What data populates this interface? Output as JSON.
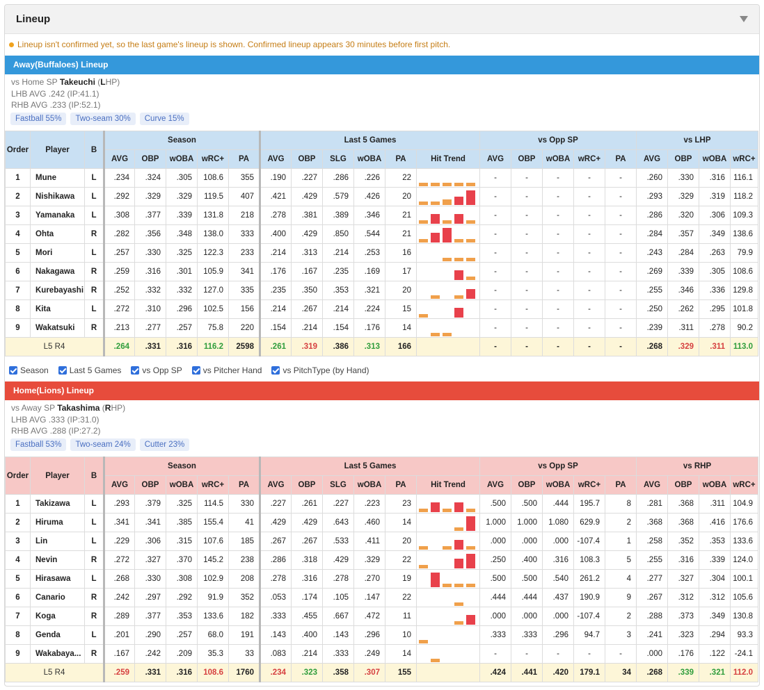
{
  "panel": {
    "title": "Lineup"
  },
  "notice": "Lineup isn't confirmed yet, so the last game's lineup is shown. Confirmed lineup appears 30 minutes before first pitch.",
  "headers": {
    "order": "Order",
    "player": "Player",
    "b": "B",
    "season": "Season",
    "last5": "Last 5 Games",
    "vs_opp_sp": "vs Opp SP",
    "cols_season": [
      "AVG",
      "OBP",
      "wOBA",
      "wRC+",
      "PA"
    ],
    "cols_last5": [
      "AVG",
      "OBP",
      "SLG",
      "wOBA",
      "PA",
      "Hit Trend"
    ],
    "cols_opp": [
      "AVG",
      "OBP",
      "wOBA",
      "wRC+",
      "PA"
    ],
    "cols_hand": [
      "AVG",
      "OBP",
      "wOBA",
      "wRC+"
    ]
  },
  "colors": {
    "bar_orange": "#f0a04b",
    "bar_red": "#e8414b"
  },
  "away": {
    "bar": "Away(Buffaloes) Lineup",
    "sp_prefix": "vs Home SP",
    "sp_name": "Takeuchi",
    "sp_hand_open": "(",
    "sp_hand_letter": "L",
    "sp_hand_rest": "HP)",
    "lhb": "LHB AVG .242 (IP:41.1)",
    "rhb": "RHB AVG .233 (IP:52.1)",
    "pitches": [
      "Fastball 55%",
      "Two-seam 30%",
      "Curve 15%"
    ],
    "hand_label": "vs LHP",
    "rows": [
      {
        "o": "1",
        "n": "Mune",
        "b": "L",
        "s": [
          ".234",
          ".324",
          ".305",
          "108.6",
          "355"
        ],
        "l": [
          ".190",
          ".227",
          ".286",
          ".226",
          "22"
        ],
        "trend": [
          1,
          1,
          1,
          1,
          1
        ],
        "v": [
          "-",
          "-",
          "-",
          "-",
          "-"
        ],
        "h": [
          ".260",
          ".330",
          ".316",
          "116.1"
        ]
      },
      {
        "o": "2",
        "n": "Nishikawa",
        "b": "L",
        "s": [
          ".292",
          ".329",
          ".329",
          "119.5",
          "407"
        ],
        "l": [
          ".421",
          ".429",
          ".579",
          ".426",
          "20"
        ],
        "trend": [
          1,
          1,
          2,
          4,
          8
        ],
        "v": [
          "-",
          "-",
          "-",
          "-",
          "-"
        ],
        "h": [
          ".293",
          ".329",
          ".319",
          "118.2"
        ]
      },
      {
        "o": "3",
        "n": "Yamanaka",
        "b": "L",
        "s": [
          ".308",
          ".377",
          ".339",
          "131.8",
          "218"
        ],
        "l": [
          ".278",
          ".381",
          ".389",
          ".346",
          "21"
        ],
        "trend": [
          1,
          5,
          1,
          5,
          1
        ],
        "v": [
          "-",
          "-",
          "-",
          "-",
          "-"
        ],
        "h": [
          ".286",
          ".320",
          ".306",
          "109.3"
        ]
      },
      {
        "o": "4",
        "n": "Ohta",
        "b": "R",
        "s": [
          ".282",
          ".356",
          ".348",
          "138.0",
          "333"
        ],
        "l": [
          ".400",
          ".429",
          ".850",
          ".544",
          "21"
        ],
        "trend": [
          1,
          5,
          8,
          1,
          1
        ],
        "v": [
          "-",
          "-",
          "-",
          "-",
          "-"
        ],
        "h": [
          ".284",
          ".357",
          ".349",
          "138.6"
        ]
      },
      {
        "o": "5",
        "n": "Mori",
        "b": "L",
        "s": [
          ".257",
          ".330",
          ".325",
          "122.3",
          "233"
        ],
        "l": [
          ".214",
          ".313",
          ".214",
          ".253",
          "16"
        ],
        "trend": [
          0,
          0,
          1,
          1,
          1
        ],
        "v": [
          "-",
          "-",
          "-",
          "-",
          "-"
        ],
        "h": [
          ".243",
          ".284",
          ".263",
          "79.9"
        ]
      },
      {
        "o": "6",
        "n": "Nakagawa",
        "b": "R",
        "s": [
          ".259",
          ".316",
          ".301",
          "105.9",
          "341"
        ],
        "l": [
          ".176",
          ".167",
          ".235",
          ".169",
          "17"
        ],
        "trend": [
          0,
          0,
          0,
          5,
          1
        ],
        "v": [
          "-",
          "-",
          "-",
          "-",
          "-"
        ],
        "h": [
          ".269",
          ".339",
          ".305",
          "108.6"
        ]
      },
      {
        "o": "7",
        "n": "Kurebayashi",
        "b": "R",
        "s": [
          ".252",
          ".332",
          ".332",
          "127.0",
          "335"
        ],
        "l": [
          ".235",
          ".350",
          ".353",
          ".321",
          "20"
        ],
        "trend": [
          0,
          1,
          0,
          1,
          5
        ],
        "v": [
          "-",
          "-",
          "-",
          "-",
          "-"
        ],
        "h": [
          ".255",
          ".346",
          ".336",
          "129.8"
        ]
      },
      {
        "o": "8",
        "n": "Kita",
        "b": "L",
        "s": [
          ".272",
          ".310",
          ".296",
          "102.5",
          "156"
        ],
        "l": [
          ".214",
          ".267",
          ".214",
          ".224",
          "15"
        ],
        "trend": [
          1,
          0,
          0,
          5,
          0
        ],
        "v": [
          "-",
          "-",
          "-",
          "-",
          "-"
        ],
        "h": [
          ".250",
          ".262",
          ".295",
          "101.8"
        ]
      },
      {
        "o": "9",
        "n": "Wakatsuki",
        "b": "R",
        "s": [
          ".213",
          ".277",
          ".257",
          "75.8",
          "220"
        ],
        "l": [
          ".154",
          ".214",
          ".154",
          ".176",
          "14"
        ],
        "trend": [
          0,
          1,
          1,
          0,
          0
        ],
        "v": [
          "-",
          "-",
          "-",
          "-",
          "-"
        ],
        "h": [
          ".239",
          ".311",
          ".278",
          "90.2"
        ]
      }
    ],
    "summary": {
      "label": "L5 R4",
      "s": [
        ".264",
        ".331",
        ".316",
        "116.2",
        "2598"
      ],
      "l": [
        ".261",
        ".319",
        ".386",
        ".313",
        "166"
      ],
      "v": [
        "-",
        "-",
        "-",
        "-",
        "-"
      ],
      "h": [
        ".268",
        ".329",
        ".311",
        "113.0"
      ]
    }
  },
  "checks": [
    "Season",
    "Last 5 Games",
    "vs Opp SP",
    "vs Pitcher Hand",
    "vs PitchType (by Hand)"
  ],
  "home": {
    "bar": "Home(Lions) Lineup",
    "sp_prefix": "vs Away SP",
    "sp_name": "Takashima",
    "sp_hand_open": "(",
    "sp_hand_letter": "R",
    "sp_hand_rest": "HP)",
    "lhb": "LHB AVG .333 (IP:31.0)",
    "rhb": "RHB AVG .288 (IP:27.2)",
    "pitches": [
      "Fastball 53%",
      "Two-seam 24%",
      "Cutter 23%"
    ],
    "hand_label": "vs RHP",
    "rows": [
      {
        "o": "1",
        "n": "Takizawa",
        "b": "L",
        "s": [
          ".293",
          ".379",
          ".325",
          "114.5",
          "330"
        ],
        "l": [
          ".227",
          ".261",
          ".227",
          ".223",
          "23"
        ],
        "trend": [
          1,
          5,
          1,
          5,
          1
        ],
        "v": [
          ".500",
          ".500",
          ".444",
          "195.7",
          "8"
        ],
        "h": [
          ".281",
          ".368",
          ".311",
          "104.9"
        ]
      },
      {
        "o": "2",
        "n": "Hiruma",
        "b": "L",
        "s": [
          ".341",
          ".341",
          ".385",
          "155.4",
          "41"
        ],
        "l": [
          ".429",
          ".429",
          ".643",
          ".460",
          "14"
        ],
        "trend": [
          0,
          0,
          0,
          1,
          8
        ],
        "v": [
          "1.000",
          "1.000",
          "1.080",
          "629.9",
          "2"
        ],
        "h": [
          ".368",
          ".368",
          ".416",
          "176.6"
        ]
      },
      {
        "o": "3",
        "n": "Lin",
        "b": "L",
        "s": [
          ".229",
          ".306",
          ".315",
          "107.6",
          "185"
        ],
        "l": [
          ".267",
          ".267",
          ".533",
          ".411",
          "20"
        ],
        "trend": [
          1,
          0,
          1,
          5,
          1
        ],
        "v": [
          ".000",
          ".000",
          ".000",
          "-107.4",
          "1"
        ],
        "h": [
          ".258",
          ".352",
          ".353",
          "133.6"
        ]
      },
      {
        "o": "4",
        "n": "Nevin",
        "b": "R",
        "s": [
          ".272",
          ".327",
          ".370",
          "145.2",
          "238"
        ],
        "l": [
          ".286",
          ".318",
          ".429",
          ".329",
          "22"
        ],
        "trend": [
          1,
          0,
          0,
          5,
          8
        ],
        "v": [
          ".250",
          ".400",
          ".316",
          "108.3",
          "5"
        ],
        "h": [
          ".255",
          ".316",
          ".339",
          "124.0"
        ]
      },
      {
        "o": "5",
        "n": "Hirasawa",
        "b": "L",
        "s": [
          ".268",
          ".330",
          ".308",
          "102.9",
          "208"
        ],
        "l": [
          ".278",
          ".316",
          ".278",
          ".270",
          "19"
        ],
        "trend": [
          0,
          8,
          1,
          1,
          1
        ],
        "v": [
          ".500",
          ".500",
          ".540",
          "261.2",
          "4"
        ],
        "h": [
          ".277",
          ".327",
          ".304",
          "100.1"
        ]
      },
      {
        "o": "6",
        "n": "Canario",
        "b": "R",
        "s": [
          ".242",
          ".297",
          ".292",
          "91.9",
          "352"
        ],
        "l": [
          ".053",
          ".174",
          ".105",
          ".147",
          "22"
        ],
        "trend": [
          0,
          0,
          0,
          1,
          0
        ],
        "v": [
          ".444",
          ".444",
          ".437",
          "190.9",
          "9"
        ],
        "h": [
          ".267",
          ".312",
          ".312",
          "105.6"
        ]
      },
      {
        "o": "7",
        "n": "Koga",
        "b": "R",
        "s": [
          ".289",
          ".377",
          ".353",
          "133.6",
          "182"
        ],
        "l": [
          ".333",
          ".455",
          ".667",
          ".472",
          "11"
        ],
        "trend": [
          0,
          0,
          0,
          1,
          5
        ],
        "v": [
          ".000",
          ".000",
          ".000",
          "-107.4",
          "2"
        ],
        "h": [
          ".288",
          ".373",
          ".349",
          "130.8"
        ]
      },
      {
        "o": "8",
        "n": "Genda",
        "b": "L",
        "s": [
          ".201",
          ".290",
          ".257",
          "68.0",
          "191"
        ],
        "l": [
          ".143",
          ".400",
          ".143",
          ".296",
          "10"
        ],
        "trend": [
          1,
          0,
          0,
          0,
          0
        ],
        "v": [
          ".333",
          ".333",
          ".296",
          "94.7",
          "3"
        ],
        "h": [
          ".241",
          ".323",
          ".294",
          "93.3"
        ]
      },
      {
        "o": "9",
        "n": "Wakabaya...",
        "b": "R",
        "s": [
          ".167",
          ".242",
          ".209",
          "35.3",
          "33"
        ],
        "l": [
          ".083",
          ".214",
          ".333",
          ".249",
          "14"
        ],
        "trend": [
          0,
          1,
          0,
          0,
          0
        ],
        "v": [
          "-",
          "-",
          "-",
          "-",
          "-"
        ],
        "h": [
          ".000",
          ".176",
          ".122",
          "-24.1"
        ]
      }
    ],
    "summary": {
      "label": "L5 R4",
      "s": [
        ".259",
        ".331",
        ".316",
        "108.6",
        "1760"
      ],
      "l": [
        ".234",
        ".323",
        ".358",
        ".307",
        "155"
      ],
      "v": [
        ".424",
        ".441",
        ".420",
        "179.1",
        "34"
      ],
      "h": [
        ".268",
        ".339",
        ".321",
        "112.0"
      ]
    }
  }
}
